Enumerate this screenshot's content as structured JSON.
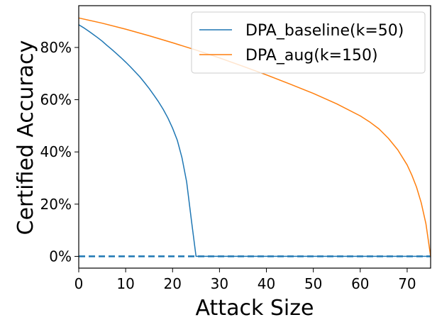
{
  "chart_data": {
    "type": "line",
    "xlabel": "Attack Size",
    "ylabel": "Certified Accuracy",
    "xlim": [
      0,
      75
    ],
    "ylim": [
      -0.045,
      0.96
    ],
    "x_ticks": [
      0,
      10,
      20,
      30,
      40,
      50,
      60,
      70
    ],
    "x_tick_labels": [
      "0",
      "10",
      "20",
      "30",
      "40",
      "50",
      "60",
      "70"
    ],
    "y_ticks": [
      0,
      0.2,
      0.4,
      0.6,
      0.8
    ],
    "y_tick_labels": [
      "0%",
      "20%",
      "40%",
      "60%",
      "80%"
    ],
    "grid": false,
    "legend_position": "top-right",
    "series": [
      {
        "name": "DPA_baseline(k=50)",
        "color": "#1f77b4",
        "x": [
          0,
          1,
          2,
          3,
          4,
          5,
          6,
          7,
          8,
          9,
          10,
          11,
          12,
          13,
          14,
          15,
          16,
          17,
          18,
          19,
          20,
          21,
          22,
          23,
          24,
          25,
          75
        ],
        "y": [
          0.887,
          0.876,
          0.864,
          0.851,
          0.838,
          0.824,
          0.808,
          0.793,
          0.777,
          0.761,
          0.744,
          0.726,
          0.707,
          0.688,
          0.666,
          0.643,
          0.618,
          0.592,
          0.563,
          0.53,
          0.491,
          0.445,
          0.378,
          0.285,
          0.14,
          0.0,
          0.0
        ]
      },
      {
        "name": "DPA_aug(k=150)",
        "color": "#ff7f0e",
        "x": [
          0,
          5,
          10,
          15,
          20,
          25,
          30,
          35,
          40,
          45,
          50,
          55,
          60,
          62,
          64,
          66,
          68,
          70,
          71,
          72,
          73,
          74,
          75
        ],
        "y": [
          0.913,
          0.893,
          0.87,
          0.845,
          0.818,
          0.79,
          0.76,
          0.728,
          0.695,
          0.66,
          0.624,
          0.584,
          0.538,
          0.515,
          0.488,
          0.452,
          0.408,
          0.35,
          0.311,
          0.265,
          0.205,
          0.125,
          0.0
        ]
      }
    ],
    "reference_line": {
      "y": 0,
      "style": "dashed",
      "color": "#1f77b4"
    }
  }
}
